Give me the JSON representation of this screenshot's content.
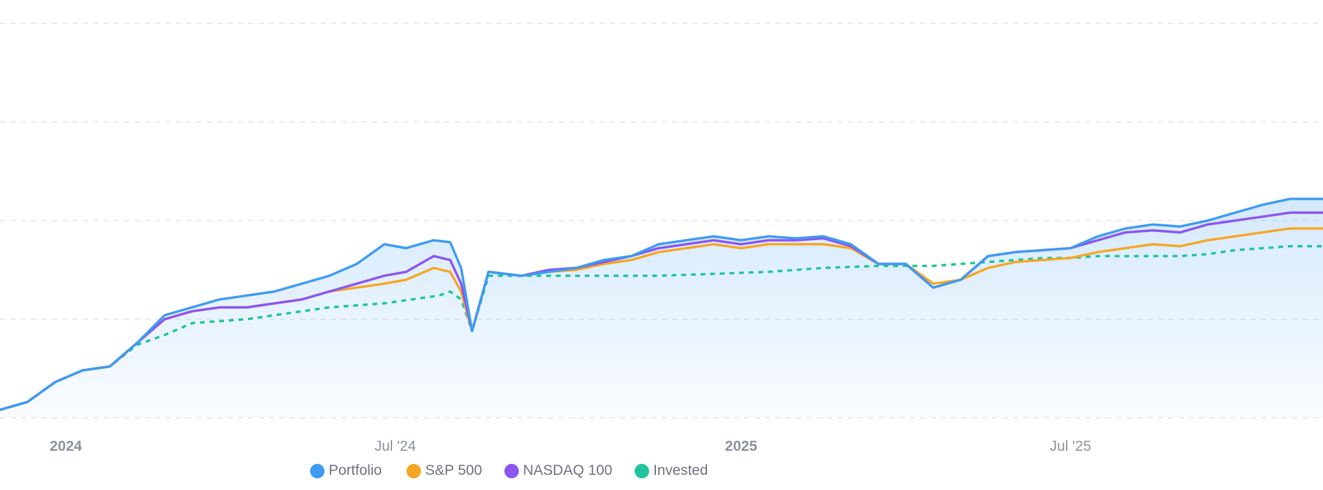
{
  "chart_data": {
    "type": "line",
    "title": "",
    "xlabel": "",
    "ylabel": "",
    "y_axis_labels_visible": false,
    "ylim": [
      0,
      100
    ],
    "grid": true,
    "xlim": [
      0,
      24.1
    ],
    "x_unit": "months since 2023-12-01",
    "x_ticks": [
      {
        "x": 1.2,
        "label": "2024",
        "bold": true
      },
      {
        "x": 7.2,
        "label": "Jul '24",
        "bold": false
      },
      {
        "x": 13.5,
        "label": "2025",
        "bold": true
      },
      {
        "x": 19.5,
        "label": "Jul '25",
        "bold": false
      }
    ],
    "legend_position": "bottom-center",
    "series": [
      {
        "name": "Portfolio",
        "color": "#3d9bf2",
        "style": "solid",
        "area_fill": true,
        "points": [
          [
            0,
            2
          ],
          [
            0.5,
            4
          ],
          [
            1,
            9
          ],
          [
            1.5,
            12
          ],
          [
            2,
            13
          ],
          [
            2.5,
            19
          ],
          [
            3,
            26
          ],
          [
            3.5,
            28
          ],
          [
            4,
            30
          ],
          [
            4.5,
            31
          ],
          [
            5,
            32
          ],
          [
            5.5,
            34
          ],
          [
            6,
            36
          ],
          [
            6.5,
            39
          ],
          [
            7,
            44
          ],
          [
            7.4,
            43
          ],
          [
            7.9,
            45
          ],
          [
            8.2,
            44.5
          ],
          [
            8.4,
            38
          ],
          [
            8.6,
            22
          ],
          [
            8.9,
            37
          ],
          [
            9.5,
            36
          ],
          [
            10,
            37
          ],
          [
            10.5,
            38
          ],
          [
            11,
            40
          ],
          [
            11.5,
            41
          ],
          [
            12,
            44
          ],
          [
            12.5,
            45
          ],
          [
            13,
            46
          ],
          [
            13.5,
            45
          ],
          [
            14,
            46
          ],
          [
            14.5,
            45.5
          ],
          [
            15,
            46
          ],
          [
            15.5,
            44
          ],
          [
            16,
            39
          ],
          [
            16.5,
            39
          ],
          [
            17,
            33
          ],
          [
            17.5,
            35
          ],
          [
            18,
            41
          ],
          [
            18.5,
            42
          ],
          [
            19,
            42.5
          ],
          [
            19.5,
            43
          ],
          [
            20,
            46
          ],
          [
            20.5,
            48
          ],
          [
            21,
            49
          ],
          [
            21.5,
            48.5
          ],
          [
            22,
            50
          ],
          [
            22.5,
            52
          ],
          [
            23,
            54
          ],
          [
            23.5,
            55.5
          ],
          [
            24.1,
            55.5
          ]
        ]
      },
      {
        "name": "S&P 500",
        "color": "#f6a623",
        "style": "solid",
        "area_fill": false,
        "points": [
          [
            0,
            2
          ],
          [
            0.5,
            4
          ],
          [
            1,
            9
          ],
          [
            1.5,
            12
          ],
          [
            2,
            13
          ],
          [
            2.5,
            19
          ],
          [
            3,
            25
          ],
          [
            3.5,
            27
          ],
          [
            4,
            28
          ],
          [
            4.5,
            28
          ],
          [
            5,
            29
          ],
          [
            5.5,
            30
          ],
          [
            6,
            32
          ],
          [
            6.5,
            33
          ],
          [
            7,
            34
          ],
          [
            7.4,
            35
          ],
          [
            7.9,
            38
          ],
          [
            8.2,
            37
          ],
          [
            8.4,
            32
          ],
          [
            8.6,
            22
          ],
          [
            8.9,
            37
          ],
          [
            9.5,
            36
          ],
          [
            10,
            37
          ],
          [
            10.5,
            37.5
          ],
          [
            11,
            39
          ],
          [
            11.5,
            40
          ],
          [
            12,
            42
          ],
          [
            12.5,
            43
          ],
          [
            13,
            44
          ],
          [
            13.5,
            43
          ],
          [
            14,
            44
          ],
          [
            14.5,
            44
          ],
          [
            15,
            44
          ],
          [
            15.5,
            43
          ],
          [
            16,
            39
          ],
          [
            16.5,
            39
          ],
          [
            17,
            34
          ],
          [
            17.5,
            35
          ],
          [
            18,
            38
          ],
          [
            18.5,
            39.5
          ],
          [
            19,
            40
          ],
          [
            19.5,
            40.5
          ],
          [
            20,
            42
          ],
          [
            20.5,
            43
          ],
          [
            21,
            44
          ],
          [
            21.5,
            43.5
          ],
          [
            22,
            45
          ],
          [
            22.5,
            46
          ],
          [
            23,
            47
          ],
          [
            23.5,
            48
          ],
          [
            24.1,
            48
          ]
        ]
      },
      {
        "name": "NASDAQ 100",
        "color": "#8b55f0",
        "style": "solid",
        "area_fill": false,
        "points": [
          [
            0,
            2
          ],
          [
            0.5,
            4
          ],
          [
            1,
            9
          ],
          [
            1.5,
            12
          ],
          [
            2,
            13
          ],
          [
            2.5,
            19
          ],
          [
            3,
            25
          ],
          [
            3.5,
            27
          ],
          [
            4,
            28
          ],
          [
            4.5,
            28
          ],
          [
            5,
            29
          ],
          [
            5.5,
            30
          ],
          [
            6,
            32
          ],
          [
            6.5,
            34
          ],
          [
            7,
            36
          ],
          [
            7.4,
            37
          ],
          [
            7.9,
            41
          ],
          [
            8.2,
            40
          ],
          [
            8.4,
            34
          ],
          [
            8.6,
            22
          ],
          [
            8.9,
            37
          ],
          [
            9.5,
            36
          ],
          [
            10,
            37.5
          ],
          [
            10.5,
            38
          ],
          [
            11,
            39.5
          ],
          [
            11.5,
            41
          ],
          [
            12,
            43
          ],
          [
            12.5,
            44
          ],
          [
            13,
            45
          ],
          [
            13.5,
            44
          ],
          [
            14,
            45
          ],
          [
            14.5,
            45
          ],
          [
            15,
            45.5
          ],
          [
            15.5,
            43.5
          ],
          [
            16,
            39
          ],
          [
            16.5,
            39
          ],
          [
            17,
            33
          ],
          [
            17.5,
            35
          ],
          [
            18,
            41
          ],
          [
            18.5,
            42
          ],
          [
            19,
            42.5
          ],
          [
            19.5,
            43
          ],
          [
            20,
            45
          ],
          [
            20.5,
            47
          ],
          [
            21,
            47.5
          ],
          [
            21.5,
            47
          ],
          [
            22,
            49
          ],
          [
            22.5,
            50
          ],
          [
            23,
            51
          ],
          [
            23.5,
            52
          ],
          [
            24.1,
            52
          ]
        ]
      },
      {
        "name": "Invested",
        "color": "#1fc49a",
        "style": "dashed",
        "area_fill": false,
        "points": [
          [
            0,
            2
          ],
          [
            0.5,
            4
          ],
          [
            1,
            9
          ],
          [
            1.5,
            12
          ],
          [
            2,
            13
          ],
          [
            2.5,
            18.5
          ],
          [
            3,
            21
          ],
          [
            3.5,
            24
          ],
          [
            4,
            24.5
          ],
          [
            4.5,
            25
          ],
          [
            5,
            26
          ],
          [
            5.5,
            27
          ],
          [
            6,
            28
          ],
          [
            6.5,
            28.5
          ],
          [
            7,
            29
          ],
          [
            7.5,
            30
          ],
          [
            8,
            31
          ],
          [
            8.2,
            32
          ],
          [
            8.4,
            30
          ],
          [
            8.6,
            22
          ],
          [
            8.9,
            36
          ],
          [
            10,
            36
          ],
          [
            11,
            36
          ],
          [
            12,
            36
          ],
          [
            13,
            36.5
          ],
          [
            14,
            37
          ],
          [
            15,
            38
          ],
          [
            16,
            38.5
          ],
          [
            16.5,
            38.5
          ],
          [
            17,
            38.5
          ],
          [
            17.5,
            39
          ],
          [
            18,
            39.5
          ],
          [
            18.5,
            40
          ],
          [
            19,
            40.5
          ],
          [
            19.5,
            40.5
          ],
          [
            20,
            41
          ],
          [
            20.5,
            41
          ],
          [
            21,
            41
          ],
          [
            21.5,
            41
          ],
          [
            22,
            41.5
          ],
          [
            22.5,
            42.5
          ],
          [
            23,
            43
          ],
          [
            23.5,
            43.5
          ],
          [
            24.1,
            43.5
          ]
        ]
      }
    ]
  }
}
